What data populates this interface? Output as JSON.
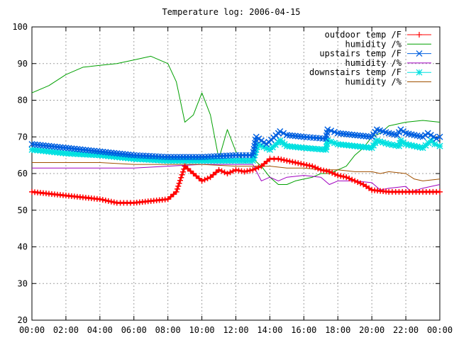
{
  "chart_data": {
    "type": "line",
    "title": "Temperature log: 2006-04-15",
    "xlabel": "",
    "ylabel": "",
    "xlim": [
      0,
      24
    ],
    "ylim": [
      20,
      100
    ],
    "x_ticks": [
      "00:00",
      "02:00",
      "04:00",
      "06:00",
      "08:00",
      "10:00",
      "12:00",
      "14:00",
      "16:00",
      "18:00",
      "20:00",
      "22:00",
      "00:00"
    ],
    "y_ticks": [
      "20",
      "30",
      "40",
      "50",
      "60",
      "70",
      "80",
      "90",
      "100"
    ],
    "grid": true,
    "legend_position": "top-right",
    "series": [
      {
        "name": "outdoor temp /F",
        "color": "#ff0000",
        "marker": "plus",
        "x": [
          0,
          1,
          2,
          3,
          4,
          5,
          6,
          7,
          8,
          8.5,
          9,
          9.5,
          10,
          10.5,
          11,
          11.5,
          12,
          12.5,
          13,
          13.5,
          14,
          14.5,
          15,
          15.5,
          16,
          16.5,
          17,
          17.5,
          18,
          18.5,
          19,
          19.5,
          20,
          21,
          22,
          23,
          24
        ],
        "y": [
          55,
          54.5,
          54,
          53.5,
          53,
          52,
          52,
          52.5,
          53,
          55,
          62,
          60,
          58,
          59,
          61,
          60,
          61,
          60.5,
          61,
          62,
          64,
          64,
          63.5,
          63,
          62.5,
          62,
          61,
          60.5,
          59.5,
          59,
          58,
          57,
          55.5,
          55,
          55,
          55,
          55
        ]
      },
      {
        "name": "humidity /%",
        "color": "#00a000",
        "marker": "",
        "x": [
          0,
          1,
          2,
          3,
          4,
          5,
          6,
          7,
          8,
          8.5,
          9,
          9.5,
          10,
          10.5,
          11,
          11.5,
          12,
          12.5,
          13,
          13.5,
          14,
          14.5,
          15,
          15.5,
          16,
          16.5,
          17,
          17.5,
          18,
          18.5,
          19,
          19.5,
          20,
          20.5,
          21,
          22,
          23,
          24
        ],
        "y": [
          82,
          84,
          87,
          89,
          89.5,
          90,
          91,
          92,
          90,
          85,
          74,
          76,
          82,
          76,
          64,
          72,
          66,
          63,
          64,
          62,
          59,
          57,
          57,
          58,
          58.5,
          59,
          60,
          60,
          61,
          62,
          65,
          67,
          70,
          71,
          73,
          74,
          74.5,
          74
        ]
      },
      {
        "name": "upstairs temp /F",
        "color": "#0060e0",
        "marker": "x",
        "x": [
          0,
          2,
          4,
          6,
          8,
          10,
          12,
          13,
          13.2,
          13.8,
          14.5,
          14.6,
          15,
          16,
          17.3,
          17.4,
          18,
          19,
          20,
          20.3,
          21,
          21.5,
          21.7,
          22,
          23,
          23.3,
          23.8,
          24
        ],
        "y": [
          68,
          67,
          66,
          65,
          64.5,
          64.5,
          65,
          65,
          70,
          68,
          71,
          71.5,
          70.5,
          70,
          69.5,
          72,
          71,
          70.5,
          70,
          72,
          71,
          70.5,
          72,
          71,
          70,
          71,
          69.5,
          70
        ]
      },
      {
        "name": "humidity /%",
        "color": "#a000c0",
        "marker": "",
        "x": [
          0,
          2,
          4,
          6,
          8,
          10,
          12,
          13,
          13.5,
          14,
          14.5,
          15,
          16,
          17,
          17.5,
          18,
          19,
          20,
          20.5,
          21,
          22,
          22.3,
          23,
          24
        ],
        "y": [
          61.5,
          61.5,
          61.5,
          61.5,
          62,
          62.5,
          62.5,
          62.5,
          58,
          59,
          58,
          59,
          59.5,
          59,
          57,
          58,
          58,
          57.5,
          55.5,
          56,
          56.5,
          55,
          56,
          57
        ]
      },
      {
        "name": "downstairs temp /F",
        "color": "#00e0e0",
        "marker": "star",
        "x": [
          0,
          2,
          4,
          6,
          8,
          10,
          12,
          13,
          13.3,
          14,
          14.5,
          14.6,
          15,
          16,
          17.3,
          17.4,
          18,
          19,
          20,
          20.3,
          21,
          21.6,
          21.7,
          22,
          23,
          23.5,
          23.7,
          24
        ],
        "y": [
          66.5,
          65.5,
          65,
          64,
          63.5,
          63.5,
          63.5,
          63.5,
          68,
          66.5,
          68.5,
          69,
          67.5,
          67,
          66.5,
          69,
          68,
          67.5,
          67,
          69,
          68,
          67.5,
          69,
          68,
          67,
          69,
          68,
          67.5
        ]
      },
      {
        "name": "humidity /%",
        "color": "#a05000",
        "marker": "",
        "x": [
          0,
          2,
          4,
          6,
          8,
          10,
          12,
          13,
          13.5,
          14,
          15,
          16,
          17,
          17.5,
          18,
          19,
          20,
          20.5,
          21,
          22,
          22.5,
          23,
          24
        ],
        "y": [
          63,
          63,
          63,
          62.5,
          62.5,
          62.5,
          62,
          62,
          62,
          62,
          61.5,
          61.5,
          61,
          61,
          61,
          60.5,
          60.5,
          60,
          60.5,
          60,
          58.5,
          58,
          58.5
        ]
      }
    ]
  }
}
